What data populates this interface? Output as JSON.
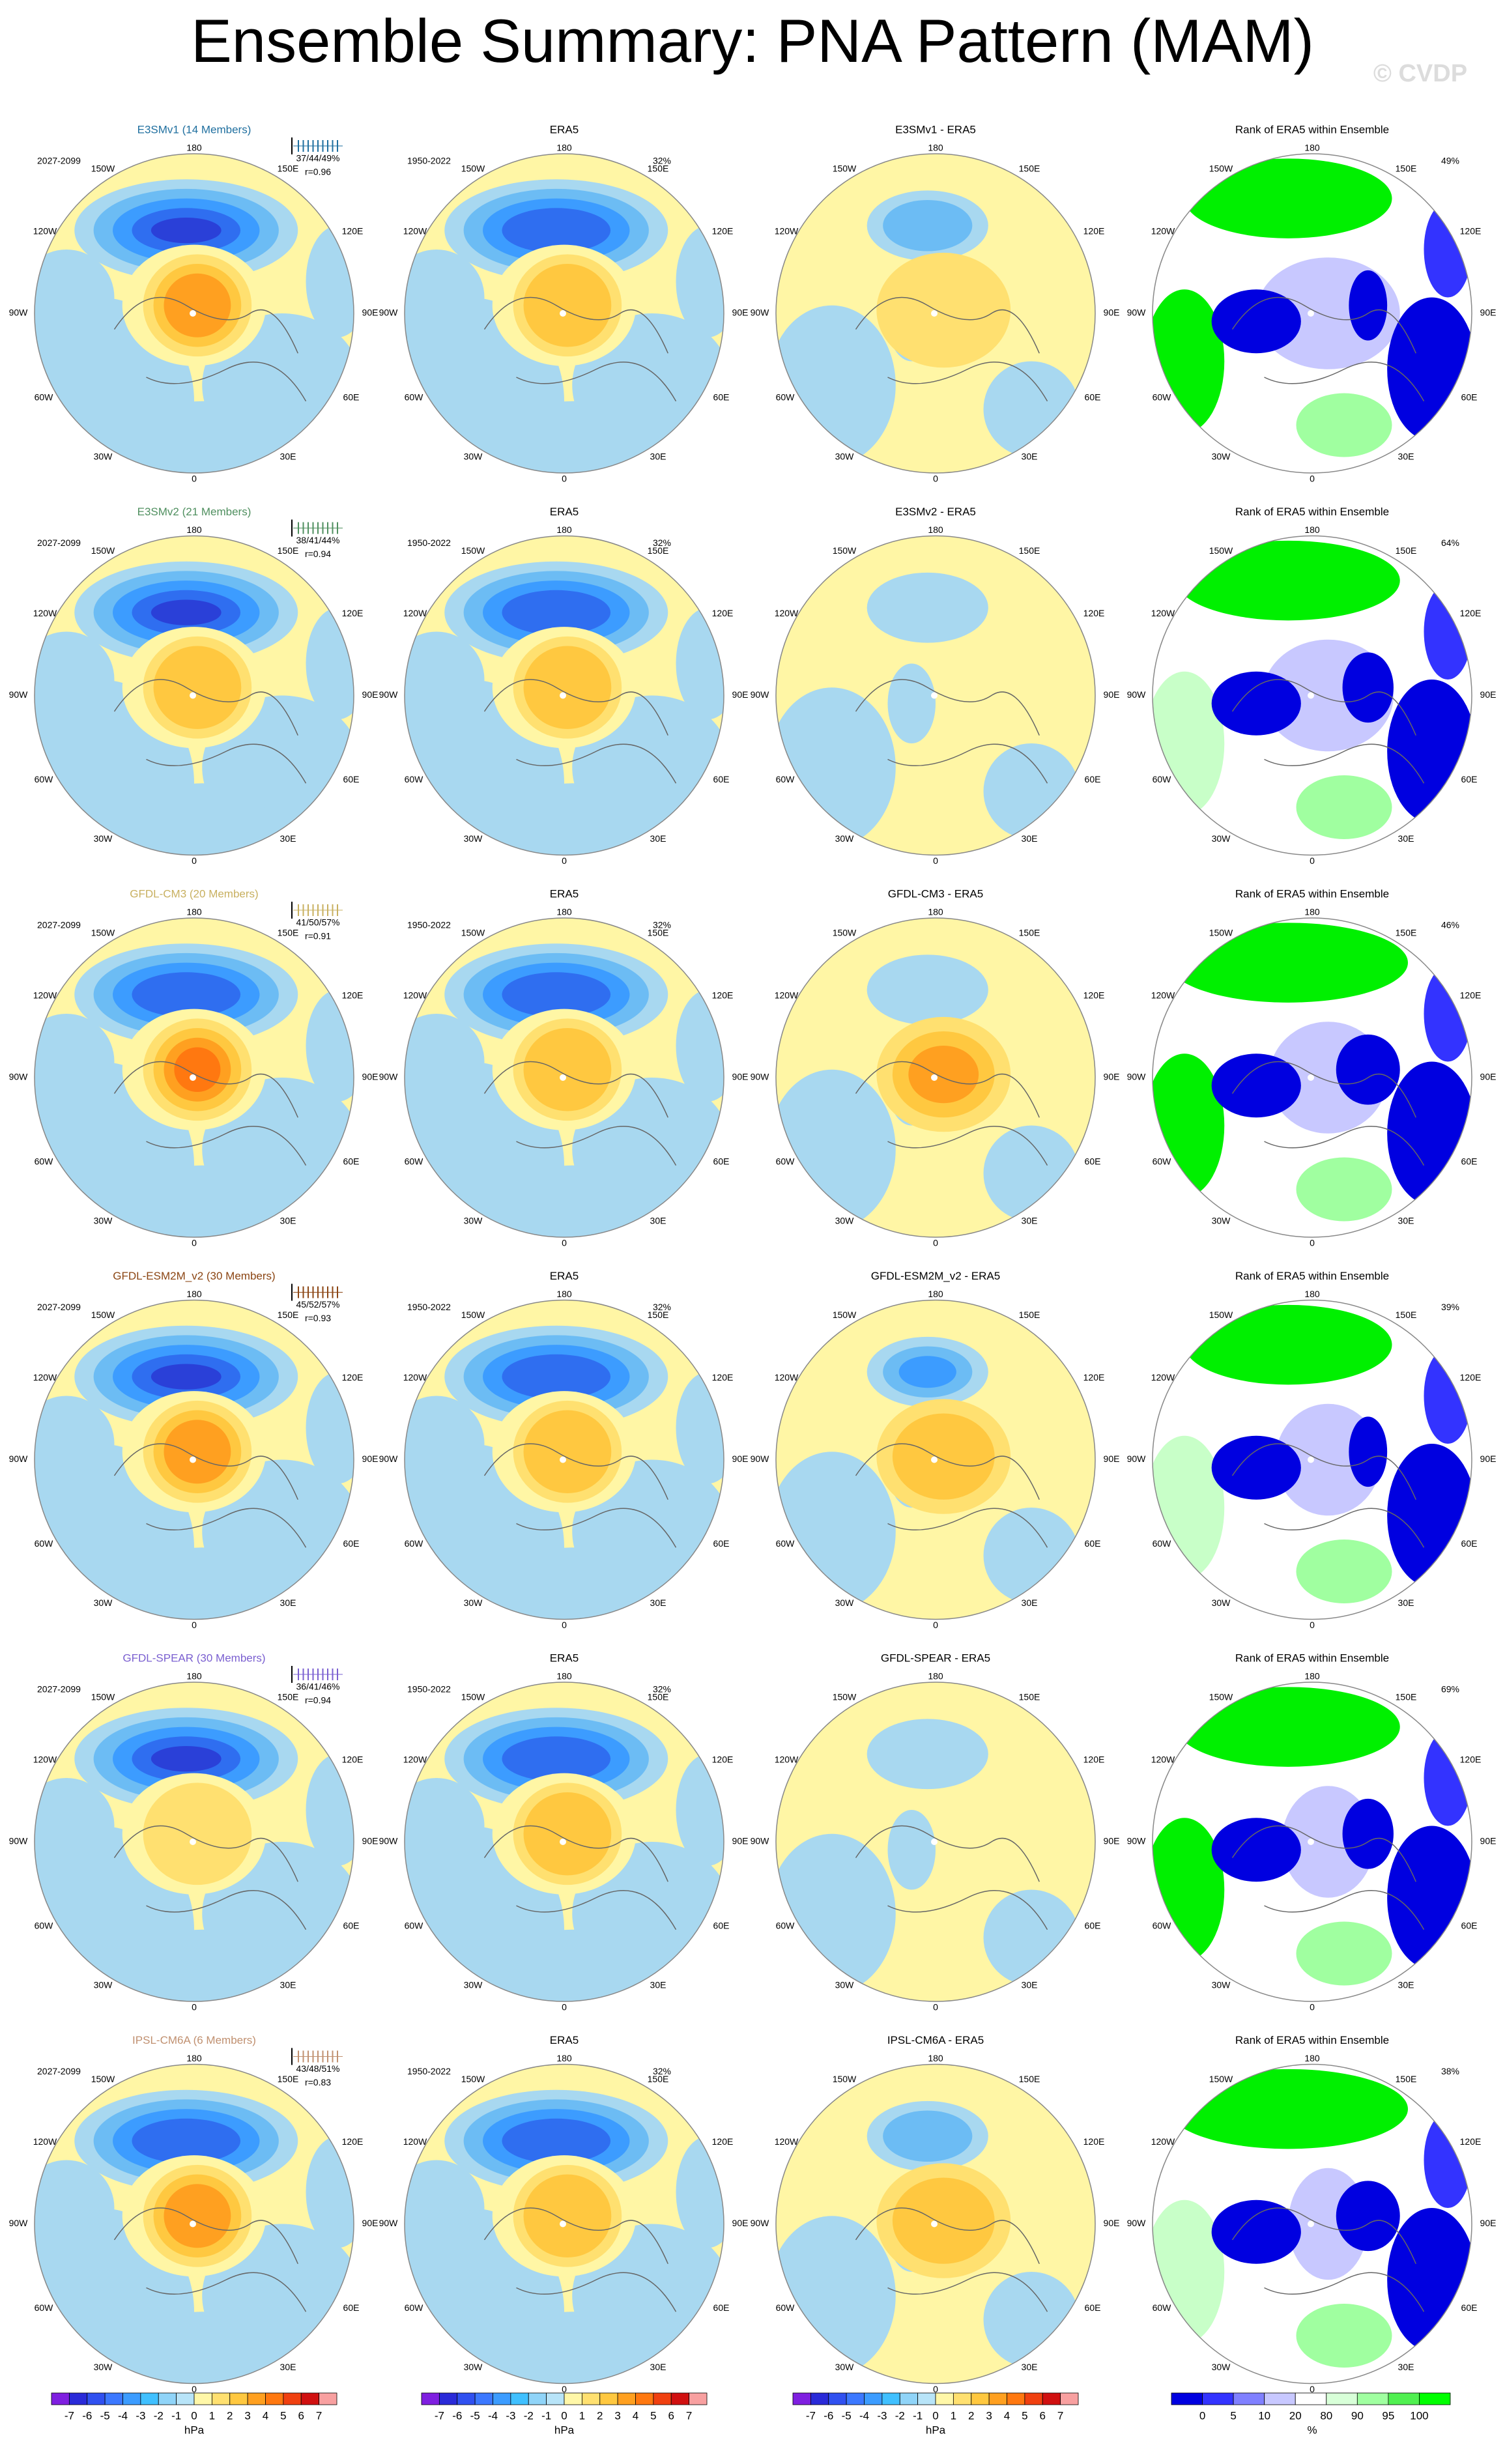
{
  "title": "Ensemble Summary: PNA Pattern (MAM)",
  "watermark": "© CVDP",
  "obs_title": "ERA5",
  "obs_period": "1950-2022",
  "obs_pct": "32%",
  "model_period": "2027-2099",
  "rank_title": "Rank of ERA5 within Ensemble",
  "longitude_labels": [
    "180",
    "150W",
    "150E",
    "120W",
    "120E",
    "90W",
    "90E",
    "60W",
    "60E",
    "30W",
    "30E",
    "0"
  ],
  "rows": [
    {
      "model": "E3SMv1 (14 Members)",
      "model_color": "#1f6f9f",
      "pctl": "37/44/49%",
      "r": "r=0.96",
      "diff_title": "E3SMv1 - ERA5",
      "rank_pct": "49%"
    },
    {
      "model": "E3SMv2 (21 Members)",
      "model_color": "#4f8f5f",
      "pctl": "38/41/44%",
      "r": "r=0.94",
      "diff_title": "E3SMv2 - ERA5",
      "rank_pct": "64%"
    },
    {
      "model": "GFDL-CM3 (20 Members)",
      "model_color": "#c8b060",
      "pctl": "41/50/57%",
      "r": "r=0.91",
      "diff_title": "GFDL-CM3 - ERA5",
      "rank_pct": "46%"
    },
    {
      "model": "GFDL-ESM2M_v2 (30 Members)",
      "model_color": "#8b4513",
      "pctl": "45/52/57%",
      "r": "r=0.93",
      "diff_title": "GFDL-ESM2M_v2 - ERA5",
      "rank_pct": "39%"
    },
    {
      "model": "GFDL-SPEAR (30 Members)",
      "model_color": "#7a5fd0",
      "pctl": "36/41/46%",
      "r": "r=0.94",
      "diff_title": "GFDL-SPEAR - ERA5",
      "rank_pct": "69%"
    },
    {
      "model": "IPSL-CM6A (6 Members)",
      "model_color": "#c09070",
      "pctl": "43/48/51%",
      "r": "r=0.83",
      "diff_title": "IPSL-CM6A - ERA5",
      "rank_pct": "38%"
    }
  ],
  "colorbars": {
    "pressure": {
      "labels": [
        -7,
        -6,
        -5,
        -4,
        -3,
        -2,
        -1,
        0,
        1,
        2,
        3,
        4,
        5,
        6,
        7
      ],
      "units": "hPa",
      "colors": [
        "#7f1fe0",
        "#2a2ad8",
        "#3050f0",
        "#3c78ff",
        "#3c9cff",
        "#40c0ff",
        "#90d4f8",
        "#b8e4f8",
        "#fff7a8",
        "#ffe070",
        "#ffc840",
        "#ffa020",
        "#ff7810",
        "#f04010",
        "#d01010",
        "#f8a0a0"
      ]
    },
    "rank": {
      "labels": [
        0,
        5,
        10,
        20,
        80,
        90,
        95,
        100
      ],
      "units": "%",
      "colors": [
        "#0000e0",
        "#3333ff",
        "#8080ff",
        "#c8c8ff",
        "#ffffff",
        "#d8ffd8",
        "#a0ffa0",
        "#50f050",
        "#00ff00"
      ]
    }
  }
}
